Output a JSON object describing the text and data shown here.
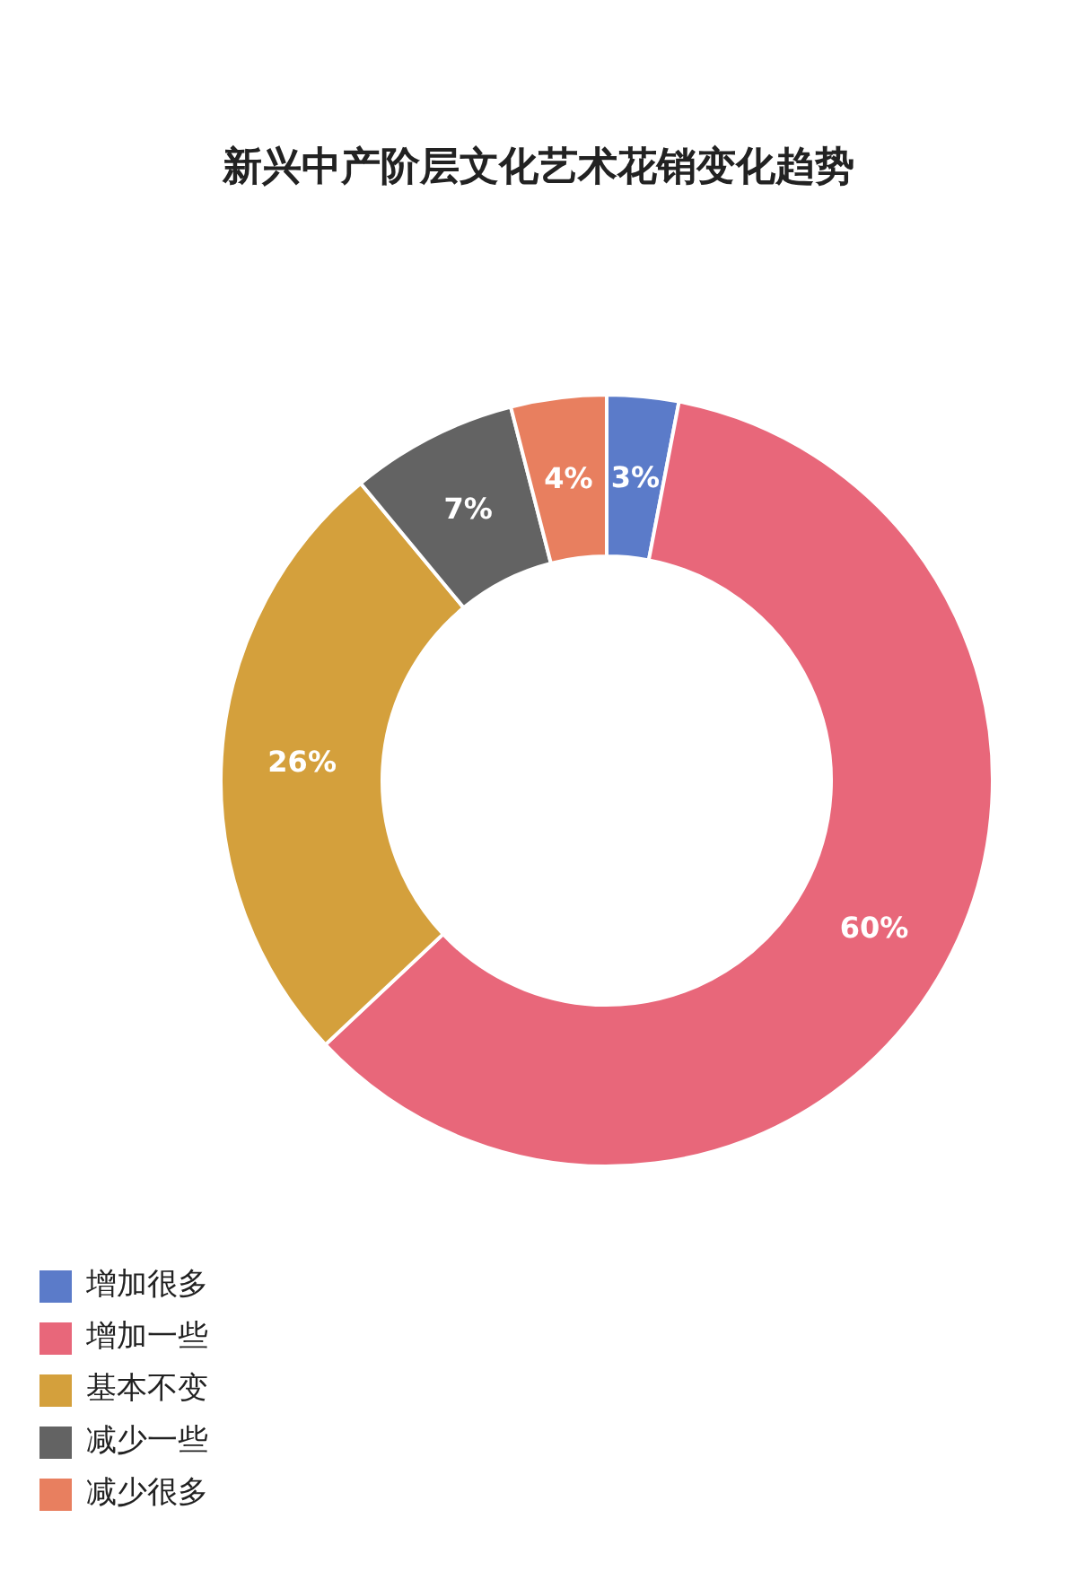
{
  "chart_data": {
    "type": "donut",
    "title": "新兴中产阶层文化艺术花销变化趋势",
    "categories": [
      "增加很多",
      "增加一些",
      "基本不变",
      "减少一些",
      "减少很多"
    ],
    "values": [
      3,
      60,
      26,
      7,
      4
    ],
    "colors": [
      "#5b7bc9",
      "#e8677a",
      "#d4a03c",
      "#636363",
      "#e87f5f"
    ],
    "value_labels": [
      "3%",
      "60%",
      "26%",
      "7%",
      "4%"
    ],
    "legend": "bottom left"
  }
}
